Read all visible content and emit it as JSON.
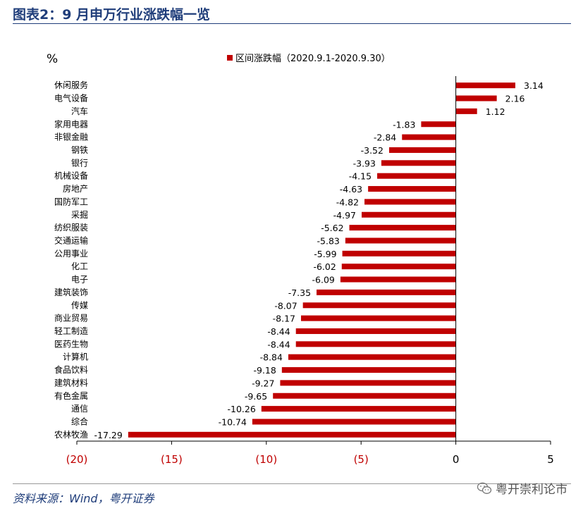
{
  "header": {
    "title": "图表2：9 月申万行业涨跌幅一览"
  },
  "footer": {
    "source": "资料来源：Wind，粤开证券",
    "watermark": "粤开崇利论市"
  },
  "icons": {
    "watermark_icon": "wechat-icon"
  },
  "colors": {
    "bar": "#c00000",
    "negative_tick": "#c00000",
    "positive_tick": "#000000"
  },
  "chart_data": {
    "type": "bar",
    "orientation": "horizontal",
    "ylabel": "%",
    "legend": {
      "label": "区间涨跌幅（2020.9.1-2020.9.30）",
      "placement": "top"
    },
    "categories": [
      "休闲服务",
      "电气设备",
      "汽车",
      "家用电器",
      "非银金融",
      "钢铁",
      "银行",
      "机械设备",
      "房地产",
      "国防军工",
      "采掘",
      "纺织服装",
      "交通运输",
      "公用事业",
      "化工",
      "电子",
      "建筑装饰",
      "传媒",
      "商业贸易",
      "轻工制造",
      "医药生物",
      "计算机",
      "食品饮料",
      "建筑材料",
      "有色金属",
      "通信",
      "综合",
      "农林牧渔"
    ],
    "values": [
      3.14,
      2.16,
      1.12,
      -1.83,
      -2.84,
      -3.52,
      -3.93,
      -4.15,
      -4.63,
      -4.82,
      -4.97,
      -5.62,
      -5.83,
      -5.99,
      -6.02,
      -6.09,
      -7.35,
      -8.07,
      -8.17,
      -8.44,
      -8.44,
      -8.84,
      -9.18,
      -9.27,
      -9.65,
      -10.26,
      -10.74,
      -17.29
    ],
    "value_labels": [
      "3.14",
      "2.16",
      "1.12",
      "-1.83",
      "-2.84",
      "-3.52",
      "-3.93",
      "-4.15",
      "-4.63",
      "-4.82",
      "-4.97",
      "-5.62",
      "-5.83",
      "-5.99",
      "-6.02",
      "-6.09",
      "-7.35",
      "-8.07",
      "-8.17",
      "-8.44",
      "-8.44",
      "-8.84",
      "-9.18",
      "-9.27",
      "-9.65",
      "-10.26",
      "-10.74",
      "-17.29"
    ],
    "xlim": [
      -20,
      5
    ],
    "xticks": [
      -20,
      -15,
      -10,
      -5,
      0,
      5
    ],
    "xtick_labels": [
      "(20)",
      "(15)",
      "(10)",
      "(5)",
      "0",
      "5"
    ],
    "grid": false
  }
}
